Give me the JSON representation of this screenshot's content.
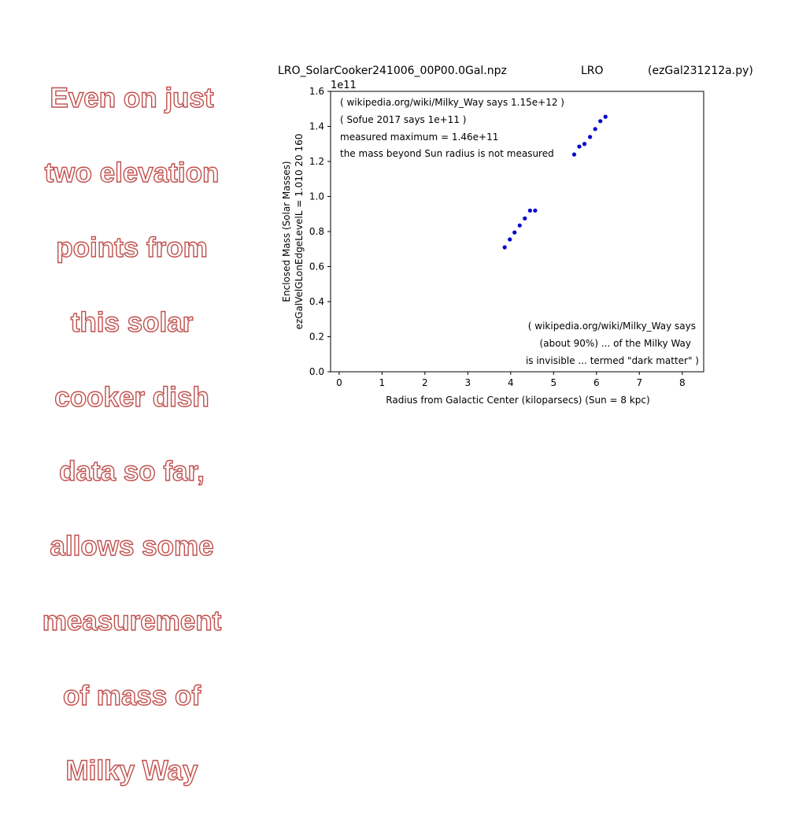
{
  "slide": {
    "caption": "Even on just two elevation points from this solar cooker dish data so far, allows some measurement of mass of Milky Way",
    "caption_lines": [
      "Even on just",
      "two elevation",
      "points from",
      "this solar",
      "cooker dish",
      "data so far,",
      "allows some",
      "measurement",
      "of mass of",
      "Milky Way"
    ],
    "caption_color": "#c0504d"
  },
  "chart_data": {
    "type": "scatter",
    "header": {
      "file": "LRO_SolarCooker241006_00P00.0Gal.npz",
      "site": "LRO",
      "script": "(ezGal231212a.py)"
    },
    "xlabel": "Radius from Galactic Center (kiloparsecs)  (Sun = 8 kpc)",
    "ylabel_line1": "Enclosed Mass (Solar Masses)",
    "ylabel_line2": "ezGalVelGLonEdgeLevelL = 1.010  20  160",
    "y_multiplier": "1e11",
    "xlim": [
      -0.2,
      8.5
    ],
    "ylim": [
      0.0,
      1.6
    ],
    "xticks": [
      0,
      1,
      2,
      3,
      4,
      5,
      6,
      7,
      8
    ],
    "yticks": [
      0.0,
      0.2,
      0.4,
      0.6,
      0.8,
      1.0,
      1.2,
      1.4,
      1.6
    ],
    "ytick_labels": [
      "0.0",
      "0.2",
      "0.4",
      "0.6",
      "0.8",
      "1.0",
      "1.2",
      "1.4",
      "1.6"
    ],
    "grid": false,
    "point_color": "#0000cc",
    "series": [
      {
        "x": [
          3.86,
          3.98,
          4.09,
          4.21,
          4.33,
          4.45,
          4.57,
          5.48,
          5.6,
          5.72,
          5.85,
          5.97,
          6.09,
          6.21
        ],
        "y": [
          0.71,
          0.755,
          0.795,
          0.835,
          0.875,
          0.92,
          0.92,
          1.24,
          1.285,
          1.3,
          1.34,
          1.385,
          1.43,
          1.455
        ]
      }
    ],
    "annotations_top": [
      "( wikipedia.org/wiki/Milky_Way says 1.15e+12 )",
      "( Sofue 2017 says 1e+11 )",
      "measured maximum = 1.46e+11",
      "the mass beyond Sun radius is not measured"
    ],
    "annotations_bottom": [
      "( wikipedia.org/wiki/Milky_Way says",
      "(about 90%) ... of the Milky Way",
      "is invisible ... termed \"dark matter\" )"
    ]
  }
}
